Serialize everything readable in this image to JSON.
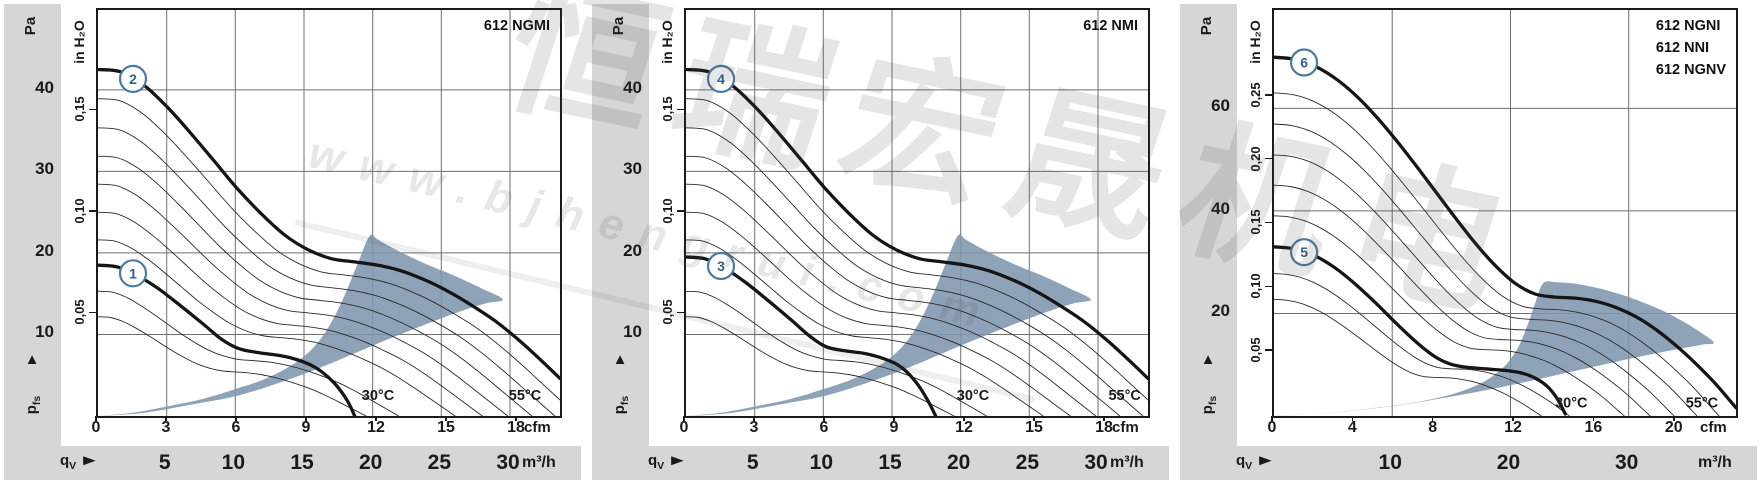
{
  "page": {
    "axis_labels": {
      "pa": "Pa",
      "in_h2o": "in H₂O",
      "pfs_main": "p",
      "pfs_sub": "fs",
      "qv_main": "q",
      "qv_sub": "V",
      "cfm": "cfm",
      "m3h": "m³/h"
    },
    "icons": {
      "pfs_arrow": "▲",
      "qv_arrow": "►"
    },
    "colors": {
      "band": "#d6d6d6",
      "grid": "#6f6f6f",
      "curve": "#151515",
      "thin_curve": "#2b2b2b",
      "region": "#7e96ad",
      "badge_stroke": "#4b7ba2",
      "badge_text": "#2f618c",
      "text": "#1a1a1a"
    }
  },
  "watermark": {
    "cn_text": "恒瑞宏晟机电",
    "url_text": "www.bjhengrui.com"
  },
  "chart_data": [
    {
      "type": "line",
      "title": "612 NGMI",
      "title_lines": [
        "612 NGMI"
      ],
      "x_axis": {
        "label": "cfm",
        "ticks": [
          0,
          3,
          6,
          9,
          12,
          15,
          18
        ],
        "max": 19.8
      },
      "x2_axis": {
        "label": "m³/h",
        "ticks": [
          5,
          10,
          15,
          20,
          25,
          30
        ],
        "cfm_per_unit": 0.58858
      },
      "y_axis": {
        "label": "Pa",
        "ticks": [
          10,
          20,
          30,
          40
        ],
        "max": 49.8
      },
      "y2_axis": {
        "label": "in H₂O",
        "ticks": [
          "0,05",
          "0,10",
          "0,15"
        ],
        "values": [
          0.05,
          0.1,
          0.15
        ],
        "pa_per_unit": 249.089
      },
      "temp_labels": [
        {
          "text": "30°C",
          "cfm": 12.0,
          "pa": 2.6
        },
        {
          "text": "55°C",
          "cfm": 18.3,
          "pa": 2.6
        }
      ],
      "series": [
        {
          "name": "curve-1",
          "badge": "1",
          "badge_cfm": 1.5,
          "points": [
            [
              0,
              18.5
            ],
            [
              0.8,
              18.3
            ],
            [
              1.5,
              17.5
            ],
            [
              2.5,
              15.8
            ],
            [
              3.5,
              13.6
            ],
            [
              4.5,
              11.3
            ],
            [
              5.3,
              9.4
            ],
            [
              6,
              8.3
            ],
            [
              6.8,
              7.8
            ],
            [
              7.6,
              7.5
            ],
            [
              8.3,
              7.1
            ],
            [
              9,
              6.4
            ],
            [
              9.6,
              5.4
            ],
            [
              10.2,
              3.8
            ],
            [
              10.7,
              1.8
            ],
            [
              11,
              0
            ]
          ]
        },
        {
          "name": "curve-2",
          "badge": "2",
          "badge_cfm": 1.5,
          "points": [
            [
              0,
              42.5
            ],
            [
              1,
              42.2
            ],
            [
              2,
              40.5
            ],
            [
              3,
              37.8
            ],
            [
              4,
              34.6
            ],
            [
              5,
              31.2
            ],
            [
              6,
              27.8
            ],
            [
              7,
              24.8
            ],
            [
              8,
              22.2
            ],
            [
              9,
              20.4
            ],
            [
              10,
              19.3
            ],
            [
              11,
              18.9
            ],
            [
              12,
              18.5
            ],
            [
              13,
              17.8
            ],
            [
              14,
              16.7
            ],
            [
              15,
              15.3
            ],
            [
              16,
              13.6
            ],
            [
              17,
              11.7
            ],
            [
              18,
              9.4
            ],
            [
              19,
              6.8
            ],
            [
              19.8,
              4.6
            ]
          ]
        }
      ],
      "speed_curve_scales": [
        0.957,
        0.912,
        0.866,
        0.818,
        0.767,
        0.713,
        0.6,
        0.535
      ],
      "operating_region": [
        [
          0,
          0
        ],
        [
          2,
          0.4
        ],
        [
          4,
          1.4
        ],
        [
          6,
          2.5
        ],
        [
          8,
          4.3
        ],
        [
          9.5,
          5.9
        ],
        [
          11,
          7.7
        ],
        [
          12.5,
          9.5
        ],
        [
          14,
          11.2
        ],
        [
          15.5,
          12.8
        ],
        [
          16.6,
          13.8
        ],
        [
          17.35,
          14.3
        ],
        [
          16.4,
          15.7
        ],
        [
          15.2,
          17.3
        ],
        [
          14,
          18.7
        ],
        [
          12.9,
          20.2
        ],
        [
          12.0,
          21.6
        ],
        [
          11.65,
          22.1
        ],
        [
          11.1,
          18.5
        ],
        [
          10.6,
          15.0
        ],
        [
          10.0,
          11.5
        ],
        [
          9.3,
          8.6
        ],
        [
          8.4,
          6.4
        ],
        [
          7.2,
          4.6
        ],
        [
          6,
          3.4
        ],
        [
          4.5,
          2.1
        ],
        [
          3,
          1.2
        ],
        [
          1.5,
          0.4
        ]
      ]
    },
    {
      "type": "line",
      "title": "612 NMI",
      "title_lines": [
        "612 NMI"
      ],
      "x_axis": {
        "label": "cfm",
        "ticks": [
          0,
          3,
          6,
          9,
          12,
          15,
          18
        ],
        "max": 19.8
      },
      "x2_axis": {
        "label": "m³/h",
        "ticks": [
          5,
          10,
          15,
          20,
          25,
          30
        ],
        "cfm_per_unit": 0.58858
      },
      "y_axis": {
        "label": "Pa",
        "ticks": [
          10,
          20,
          30,
          40
        ],
        "max": 49.8
      },
      "y2_axis": {
        "label": "in H₂O",
        "ticks": [
          "0,05",
          "0,10",
          "0,15"
        ],
        "values": [
          0.05,
          0.1,
          0.15
        ],
        "pa_per_unit": 249.089
      },
      "temp_labels": [
        {
          "text": "30°C",
          "cfm": 12.3,
          "pa": 2.6
        },
        {
          "text": "55°C",
          "cfm": 18.8,
          "pa": 2.6
        }
      ],
      "series": [
        {
          "name": "curve-3",
          "badge": "3",
          "badge_cfm": 1.5,
          "points": [
            [
              0,
              19.5
            ],
            [
              0.8,
              19.3
            ],
            [
              1.5,
              18.4
            ],
            [
              2.5,
              16.5
            ],
            [
              3.5,
              14.2
            ],
            [
              4.5,
              11.8
            ],
            [
              5.3,
              9.8
            ],
            [
              6,
              8.5
            ],
            [
              6.8,
              8.0
            ],
            [
              7.6,
              7.7
            ],
            [
              8.3,
              7.2
            ],
            [
              9,
              6.4
            ],
            [
              9.5,
              5.3
            ],
            [
              10,
              3.6
            ],
            [
              10.4,
              1.7
            ],
            [
              10.7,
              0
            ]
          ]
        },
        {
          "name": "curve-4",
          "badge": "4",
          "badge_cfm": 1.5,
          "points": [
            [
              0,
              42.5
            ],
            [
              1,
              42.2
            ],
            [
              2,
              40.5
            ],
            [
              3,
              37.8
            ],
            [
              4,
              34.6
            ],
            [
              5,
              31.2
            ],
            [
              6,
              27.8
            ],
            [
              7,
              24.8
            ],
            [
              8,
              22.2
            ],
            [
              9,
              20.4
            ],
            [
              10,
              19.3
            ],
            [
              11,
              18.9
            ],
            [
              12,
              18.5
            ],
            [
              13,
              17.8
            ],
            [
              14,
              16.7
            ],
            [
              15,
              15.3
            ],
            [
              16,
              13.6
            ],
            [
              17,
              11.7
            ],
            [
              18,
              9.4
            ],
            [
              19,
              6.8
            ],
            [
              19.8,
              4.6
            ]
          ]
        }
      ],
      "speed_curve_scales": [
        0.957,
        0.912,
        0.866,
        0.818,
        0.767,
        0.713,
        0.6,
        0.535
      ],
      "operating_region": [
        [
          0,
          0
        ],
        [
          2,
          0.4
        ],
        [
          4,
          1.4
        ],
        [
          6,
          2.5
        ],
        [
          8,
          4.3
        ],
        [
          9.5,
          5.9
        ],
        [
          11,
          7.7
        ],
        [
          12.5,
          9.5
        ],
        [
          14,
          11.2
        ],
        [
          15.5,
          12.8
        ],
        [
          16.6,
          13.8
        ],
        [
          17.35,
          14.3
        ],
        [
          16.4,
          15.7
        ],
        [
          15.2,
          17.3
        ],
        [
          14,
          18.7
        ],
        [
          12.9,
          20.2
        ],
        [
          12.0,
          21.6
        ],
        [
          11.65,
          22.1
        ],
        [
          11.1,
          18.5
        ],
        [
          10.6,
          15.0
        ],
        [
          10.0,
          11.5
        ],
        [
          9.3,
          8.6
        ],
        [
          8.4,
          6.4
        ],
        [
          7.2,
          4.6
        ],
        [
          6,
          3.4
        ],
        [
          4.5,
          2.1
        ],
        [
          3,
          1.2
        ],
        [
          1.5,
          0.4
        ]
      ]
    },
    {
      "type": "line",
      "title": "612 NGNI / 612 NNI / 612 NGNV",
      "title_lines": [
        "612 NGNI",
        "612 NNI",
        "612 NGNV"
      ],
      "x_axis": {
        "label": "cfm",
        "ticks": [
          0,
          4,
          8,
          12,
          16,
          20
        ],
        "max": 23.0
      },
      "x2_axis": {
        "label": "m³/h",
        "ticks": [
          10,
          20,
          30
        ],
        "cfm_per_unit": 0.58858
      },
      "y_axis": {
        "label": "Pa",
        "ticks": [
          20,
          40,
          60
        ],
        "max": 79.2
      },
      "y2_axis": {
        "label": "in H₂O",
        "ticks": [
          "0,05",
          "0,10",
          "0,15",
          "0,20",
          "0,25"
        ],
        "values": [
          0.05,
          0.1,
          0.15,
          0.2,
          0.25
        ],
        "pa_per_unit": 249.089
      },
      "temp_labels": [
        {
          "text": "30°C",
          "cfm": 14.8,
          "pa": 2.6
        },
        {
          "text": "55°C",
          "cfm": 21.3,
          "pa": 2.6
        }
      ],
      "series": [
        {
          "name": "curve-5",
          "badge": "5",
          "badge_cfm": 1.5,
          "points": [
            [
              0,
              33
            ],
            [
              1,
              32.6
            ],
            [
              2,
              31.3
            ],
            [
              3,
              29
            ],
            [
              4,
              25.9
            ],
            [
              5,
              22.3
            ],
            [
              6,
              18.4
            ],
            [
              7,
              14.7
            ],
            [
              8,
              11.6
            ],
            [
              8.8,
              10.1
            ],
            [
              9.6,
              9.5
            ],
            [
              10.5,
              9.2
            ],
            [
              11.5,
              8.9
            ],
            [
              12.3,
              8.4
            ],
            [
              13,
              7.4
            ],
            [
              13.6,
              5.8
            ],
            [
              14.1,
              3.4
            ],
            [
              14.5,
              0.4
            ]
          ]
        },
        {
          "name": "curve-6",
          "badge": "6",
          "badge_cfm": 1.5,
          "points": [
            [
              0,
              70
            ],
            [
              1,
              69.6
            ],
            [
              2,
              68.3
            ],
            [
              3,
              66
            ],
            [
              4,
              62.8
            ],
            [
              5,
              58.8
            ],
            [
              6,
              54.2
            ],
            [
              7,
              49.2
            ],
            [
              8,
              44
            ],
            [
              9,
              38.8
            ],
            [
              10,
              33.8
            ],
            [
              11,
              29.4
            ],
            [
              12,
              25.9
            ],
            [
              13,
              23.8
            ],
            [
              14,
              23.2
            ],
            [
              15,
              23.0
            ],
            [
              16,
              22.4
            ],
            [
              17,
              21.2
            ],
            [
              18,
              19.4
            ],
            [
              19,
              16.9
            ],
            [
              20,
              13.8
            ],
            [
              21,
              10.2
            ],
            [
              22,
              6.2
            ],
            [
              23,
              1.6
            ]
          ]
        }
      ],
      "speed_curve_scales": [
        0.949,
        0.902,
        0.853,
        0.802,
        0.747,
        0.63,
        0.57
      ],
      "operating_region": [
        [
          0,
          0
        ],
        [
          3,
          0.7
        ],
        [
          6,
          2.0
        ],
        [
          9,
          3.9
        ],
        [
          12,
          6.2
        ],
        [
          15,
          8.8
        ],
        [
          17.5,
          11.0
        ],
        [
          19.5,
          12.6
        ],
        [
          21.3,
          13.9
        ],
        [
          21.9,
          14.3
        ],
        [
          21.2,
          16.4
        ],
        [
          20.3,
          18.6
        ],
        [
          19.2,
          20.8
        ],
        [
          17.8,
          23.0
        ],
        [
          16.3,
          24.8
        ],
        [
          15,
          25.8
        ],
        [
          14,
          26.1
        ],
        [
          13.4,
          25.9
        ],
        [
          13.0,
          22.0
        ],
        [
          12.6,
          17.5
        ],
        [
          12.1,
          13.0
        ],
        [
          11.4,
          9.4
        ],
        [
          10.4,
          6.6
        ],
        [
          9,
          4.4
        ],
        [
          7.5,
          3.0
        ],
        [
          5.5,
          1.8
        ],
        [
          3.5,
          0.9
        ],
        [
          1.5,
          0.3
        ]
      ]
    }
  ]
}
